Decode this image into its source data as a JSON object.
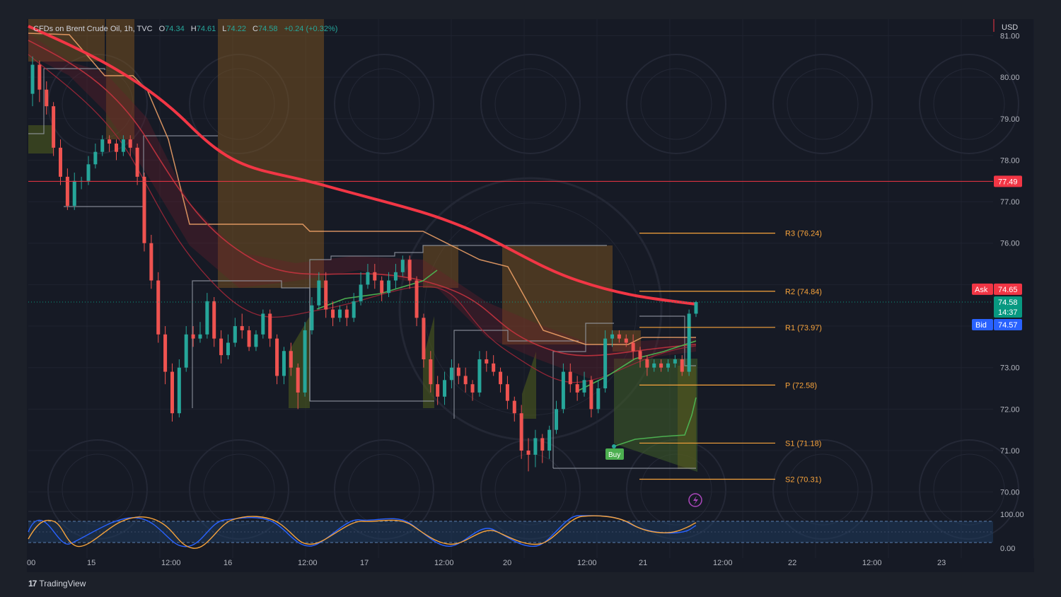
{
  "header": {
    "symbol": "CFDs on Brent Crude Oil, 1h, TVC",
    "open_label": "O",
    "open": "74.34",
    "high_label": "H",
    "high": "74.61",
    "low_label": "L",
    "low": "74.22",
    "close_label": "C",
    "close": "74.58",
    "change": "+0.24 (+0.32%)"
  },
  "price_axis": {
    "currency": "USD",
    "ticks": [
      "81.00",
      "80.00",
      "79.00",
      "78.00",
      "77.00",
      "76.00",
      "73.00",
      "72.00",
      "71.00",
      "70.00"
    ]
  },
  "time_axis": {
    "labels": [
      "00",
      "15",
      "12:00",
      "16",
      "12:00",
      "17",
      "12:00",
      "20",
      "12:00",
      "21",
      "12:00",
      "22",
      "12:00",
      "23"
    ]
  },
  "markers": {
    "level_line": "77.49",
    "ask_label": "Ask",
    "ask": "74.65",
    "last": "74.58",
    "countdown": "14:37",
    "bid_label": "Bid",
    "bid": "74.57"
  },
  "pivots": [
    {
      "label": "R3 (76.24)",
      "value": 76.24
    },
    {
      "label": "R2 (74.84)",
      "value": 74.84
    },
    {
      "label": "R1 (73.97)",
      "value": 73.97
    },
    {
      "label": "P (72.58)",
      "value": 72.58
    },
    {
      "label": "S1 (71.18)",
      "value": 71.18
    },
    {
      "label": "S2 (70.31)",
      "value": 70.31
    }
  ],
  "signal": {
    "label": "Buy"
  },
  "oscillator": {
    "ticks": [
      "100.00",
      "0.00"
    ]
  },
  "branding": {
    "logo_mark": "17",
    "logo_text": "TradingView"
  },
  "colors": {
    "bull": "#26a69a",
    "bear": "#ef5350",
    "ema": "#f23645",
    "pivot": "#f7a33b",
    "ask": "#f23645",
    "bid": "#2962ff",
    "last": "#089981"
  },
  "chart_data": {
    "type": "candlestick",
    "title": "CFDs on Brent Crude Oil, 1h, TVC",
    "ylim": [
      69.5,
      81.4
    ],
    "candles": [
      [
        79.6,
        80.3,
        80.5,
        79.3
      ],
      [
        80.3,
        79.7,
        80.4,
        79.4
      ],
      [
        79.7,
        79.3,
        79.9,
        79.1
      ],
      [
        79.3,
        78.3,
        79.4,
        78.1
      ],
      [
        78.3,
        77.6,
        78.5,
        77.4
      ],
      [
        77.6,
        76.9,
        77.8,
        76.8
      ],
      [
        76.9,
        77.5,
        77.7,
        76.8
      ],
      [
        77.5,
        77.5,
        77.6,
        77.3
      ],
      [
        77.5,
        77.9,
        78.1,
        77.4
      ],
      [
        77.9,
        78.2,
        78.4,
        77.8
      ],
      [
        78.2,
        78.5,
        78.6,
        78.1
      ],
      [
        78.5,
        78.4,
        78.6,
        78.2
      ],
      [
        78.4,
        78.2,
        78.5,
        78.0
      ],
      [
        78.2,
        78.5,
        78.6,
        78.1
      ],
      [
        78.5,
        78.3,
        78.6,
        78.1
      ],
      [
        78.3,
        77.6,
        78.4,
        77.4
      ],
      [
        77.6,
        76.0,
        77.7,
        75.8
      ],
      [
        76.0,
        75.1,
        76.2,
        74.9
      ],
      [
        75.1,
        73.8,
        75.3,
        73.6
      ],
      [
        73.8,
        72.9,
        74.0,
        72.6
      ],
      [
        72.9,
        71.9,
        73.1,
        71.7
      ],
      [
        71.9,
        73.0,
        73.2,
        71.8
      ],
      [
        73.0,
        73.8,
        74.0,
        72.9
      ],
      [
        73.8,
        73.7,
        74.0,
        73.5
      ],
      [
        73.7,
        73.8,
        74.1,
        73.6
      ],
      [
        73.8,
        74.6,
        74.8,
        73.7
      ],
      [
        74.6,
        73.7,
        74.7,
        73.5
      ],
      [
        73.7,
        73.3,
        73.9,
        73.1
      ],
      [
        73.3,
        73.6,
        73.8,
        73.2
      ],
      [
        73.6,
        74.0,
        74.2,
        73.5
      ],
      [
        74.0,
        73.9,
        74.3,
        73.7
      ],
      [
        73.9,
        73.5,
        74.0,
        73.4
      ],
      [
        73.5,
        73.8,
        73.9,
        73.4
      ],
      [
        73.8,
        74.3,
        74.4,
        73.7
      ],
      [
        74.3,
        73.7,
        74.4,
        73.5
      ],
      [
        73.7,
        72.8,
        73.8,
        72.6
      ],
      [
        72.8,
        73.4,
        73.5,
        72.6
      ],
      [
        73.4,
        73.0,
        73.6,
        72.8
      ],
      [
        73.0,
        72.4,
        73.1,
        72.0
      ],
      [
        72.4,
        73.9,
        74.1,
        72.3
      ],
      [
        73.9,
        74.5,
        74.7,
        73.8
      ],
      [
        74.5,
        75.1,
        75.3,
        74.4
      ],
      [
        75.1,
        74.4,
        75.3,
        74.2
      ],
      [
        74.4,
        74.2,
        74.6,
        74.0
      ],
      [
        74.2,
        74.4,
        74.5,
        74.1
      ],
      [
        74.4,
        74.2,
        74.5,
        74.0
      ],
      [
        74.2,
        74.6,
        74.8,
        74.1
      ],
      [
        74.6,
        75.0,
        75.3,
        74.5
      ],
      [
        75.0,
        75.3,
        75.5,
        74.9
      ],
      [
        75.3,
        75.1,
        75.5,
        74.9
      ],
      [
        75.1,
        74.8,
        75.2,
        74.6
      ],
      [
        74.8,
        75.1,
        75.3,
        74.7
      ],
      [
        75.1,
        75.3,
        75.5,
        74.9
      ],
      [
        75.3,
        75.6,
        75.7,
        75.2
      ],
      [
        75.6,
        75.1,
        75.7,
        74.9
      ],
      [
        75.1,
        74.2,
        75.2,
        74.0
      ],
      [
        74.2,
        73.2,
        74.3,
        73.0
      ],
      [
        73.2,
        72.6,
        73.4,
        72.4
      ],
      [
        72.6,
        72.3,
        72.8,
        72.1
      ],
      [
        72.3,
        72.7,
        72.9,
        72.1
      ],
      [
        72.7,
        73.0,
        73.2,
        72.5
      ],
      [
        73.0,
        72.8,
        73.1,
        72.6
      ],
      [
        72.8,
        72.6,
        73.0,
        72.4
      ],
      [
        72.6,
        72.4,
        72.7,
        72.2
      ],
      [
        72.4,
        73.2,
        73.4,
        72.3
      ],
      [
        73.2,
        73.1,
        73.4,
        72.9
      ],
      [
        73.1,
        72.9,
        73.3,
        72.8
      ],
      [
        72.9,
        72.6,
        73.0,
        72.4
      ],
      [
        72.6,
        72.2,
        72.8,
        72.0
      ],
      [
        72.2,
        71.9,
        72.3,
        71.7
      ],
      [
        71.9,
        71.0,
        72.1,
        70.8
      ],
      [
        71.0,
        70.9,
        71.3,
        70.5
      ],
      [
        70.9,
        71.3,
        71.5,
        70.6
      ],
      [
        71.3,
        71.0,
        71.4,
        70.7
      ],
      [
        71.0,
        71.5,
        71.6,
        70.8
      ],
      [
        71.5,
        72.0,
        72.2,
        71.4
      ],
      [
        72.0,
        72.9,
        73.1,
        71.9
      ],
      [
        72.9,
        72.6,
        73.1,
        72.4
      ],
      [
        72.6,
        72.4,
        72.8,
        72.2
      ],
      [
        72.4,
        72.7,
        72.9,
        72.3
      ],
      [
        72.7,
        72.0,
        72.8,
        71.8
      ],
      [
        72.0,
        72.5,
        72.7,
        71.9
      ],
      [
        72.5,
        73.7,
        73.9,
        72.4
      ],
      [
        73.7,
        73.8,
        73.9,
        73.5
      ],
      [
        73.8,
        73.7,
        73.9,
        73.6
      ],
      [
        73.7,
        73.6,
        73.8,
        73.5
      ],
      [
        73.6,
        73.4,
        73.8,
        73.2
      ],
      [
        73.4,
        73.2,
        73.5,
        73.0
      ],
      [
        73.2,
        73.0,
        73.3,
        72.8
      ],
      [
        73.0,
        73.1,
        73.2,
        72.9
      ],
      [
        73.1,
        73.0,
        73.2,
        72.9
      ],
      [
        73.0,
        73.1,
        73.2,
        72.9
      ],
      [
        73.1,
        73.2,
        73.3,
        73.0
      ],
      [
        73.2,
        72.9,
        73.3,
        72.8
      ],
      [
        72.9,
        74.3,
        74.4,
        72.8
      ],
      [
        74.3,
        74.58,
        74.61,
        74.22
      ]
    ]
  }
}
